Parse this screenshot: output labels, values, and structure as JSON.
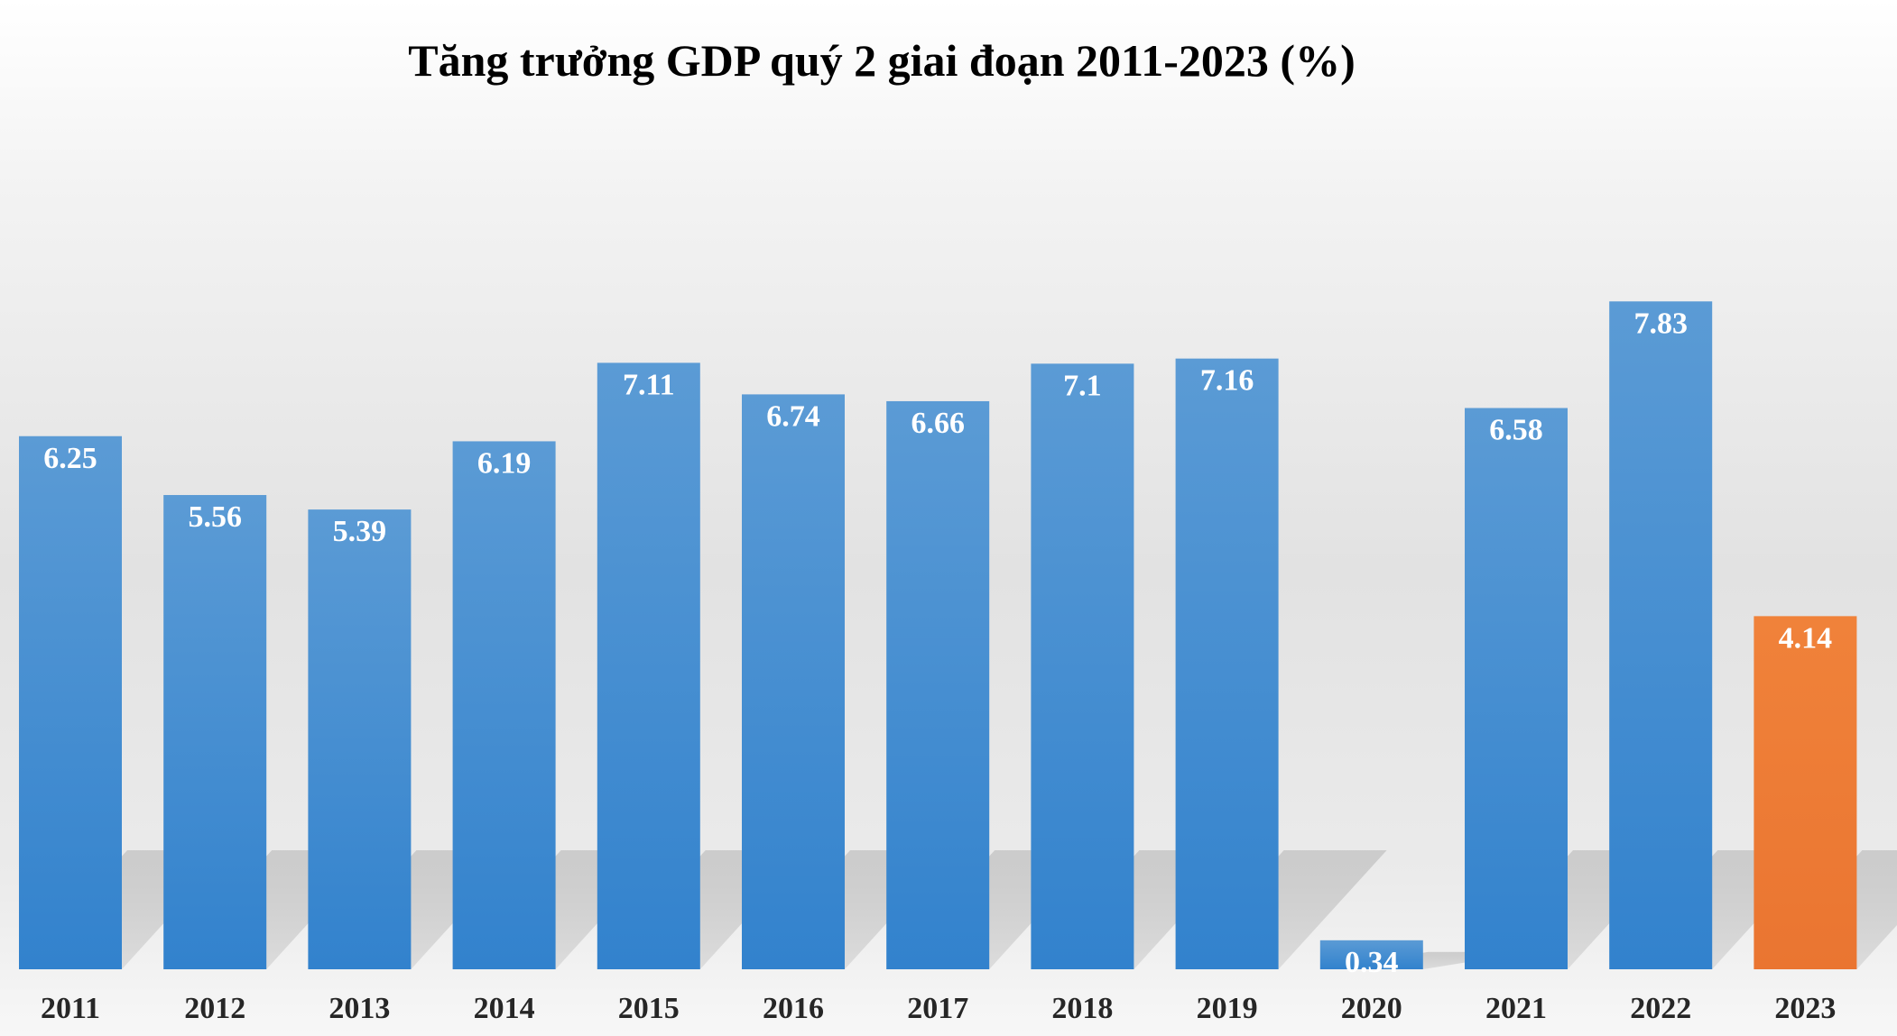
{
  "chart_data": {
    "type": "bar",
    "title": "Tăng trưởng GDP quý 2 giai đoạn 2011-2023 (%)",
    "xlabel": "",
    "ylabel": "",
    "categories": [
      "2011",
      "2012",
      "2013",
      "2014",
      "2015",
      "2016",
      "2017",
      "2018",
      "2019",
      "2020",
      "2021",
      "2022",
      "2023"
    ],
    "values": [
      6.25,
      5.56,
      5.39,
      6.19,
      7.11,
      6.74,
      6.66,
      7.1,
      7.16,
      0.34,
      6.58,
      7.83,
      4.14
    ],
    "labels": [
      "6.25",
      "5.56",
      "5.39",
      "6.19",
      "7.11",
      "6.74",
      "6.66",
      "7.1",
      "7.16",
      "0.34",
      "6.58",
      "7.83",
      "4.14"
    ],
    "ylim": [
      0,
      8.2
    ],
    "grid": false,
    "legend": "none",
    "colors": {
      "default_top": "#5b9bd5",
      "default_bottom": "#3282cd",
      "highlight_top": "#f0823a",
      "highlight_bottom": "#ea7531",
      "highlight_category": "2023"
    }
  }
}
